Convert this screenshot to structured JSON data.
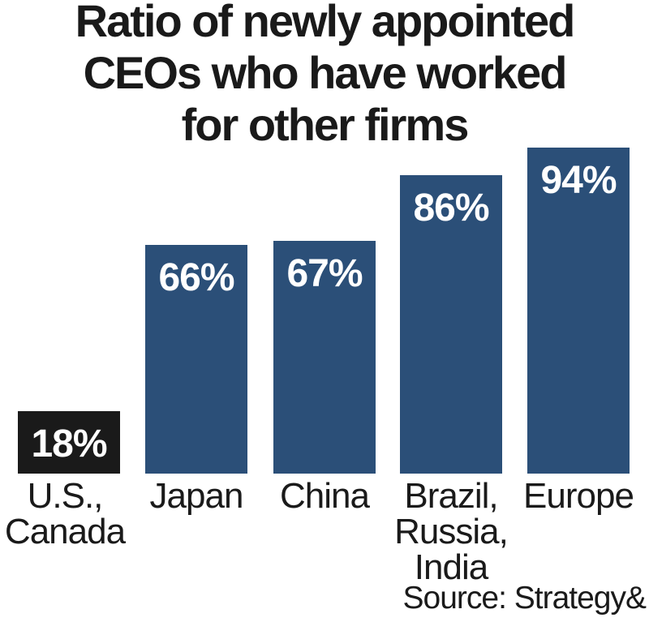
{
  "title": "Ratio of newly appointed\nCEOs who have worked\nfor other firms",
  "source": "Source: Strategy&",
  "colors": {
    "background": "#ffffff",
    "bar_blue": "#2b4f78",
    "bar_black": "#1a1a1a",
    "value_text": "#ffffff",
    "label_text": "#1a1a1a"
  },
  "chart_data": {
    "type": "bar",
    "title": "Ratio of newly appointed CEOs who have worked for other firms",
    "unit": "%",
    "ylim": [
      0,
      100
    ],
    "grid": false,
    "legend": "none",
    "categories": [
      "Japan",
      "China",
      "Brazil, Russia, India",
      "Europe",
      "U.S., Canada"
    ],
    "categories_display": [
      "Japan",
      "China",
      "Brazil,\nRussia,\nIndia",
      "Europe",
      "U.S.,\nCanada"
    ],
    "values": [
      18,
      66,
      67,
      86,
      94
    ],
    "value_labels": [
      "18%",
      "66%",
      "67%",
      "86%",
      "94%"
    ],
    "bar_colors": [
      "#1a1a1a",
      "#2b4f78",
      "#2b4f78",
      "#2b4f78",
      "#2b4f78"
    ],
    "source": "Source: Strategy&"
  }
}
